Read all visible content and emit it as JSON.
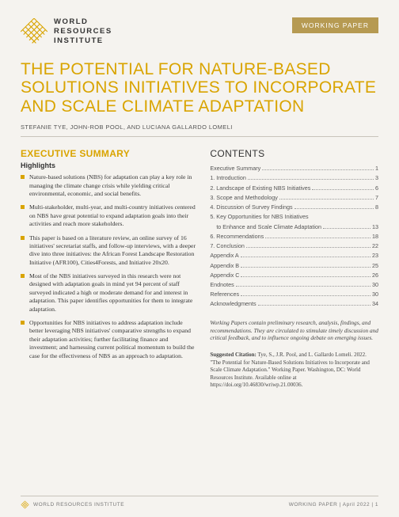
{
  "header": {
    "org_line1": "WORLD",
    "org_line2": "RESOURCES",
    "org_line3": "INSTITUTE",
    "badge": "WORKING PAPER"
  },
  "title": "THE POTENTIAL FOR NATURE-BASED SOLUTIONS INITIATIVES TO INCORPORATE AND SCALE CLIMATE ADAPTATION",
  "authors": "STEFANIE TYE, JOHN-ROB POOL, AND LUCIANA GALLARDO LOMELI",
  "exec_summary_heading": "EXECUTIVE SUMMARY",
  "highlights_label": "Highlights",
  "bullets": [
    "Nature-based solutions (NBS) for adaptation can play a key role in managing the climate change crisis while yielding critical environmental, economic, and social benefits.",
    "Multi-stakeholder, multi-year, and multi-country initiatives centered on NBS have great potential to expand adaptation goals into their activities and reach more stakeholders.",
    "This paper is based on a literature review, an online survey of 16 initiatives' secretariat staffs, and follow-up interviews, with a deeper dive into three initiatives: the African Forest Landscape Restoration Initiative (AFR100), Cities4Forests, and Initiative 20x20.",
    "Most of the NBS initiatives surveyed in this research were not designed with adaptation goals in mind yet 94 percent of staff surveyed indicated a high or moderate demand for and interest in adaptation. This paper identifies opportunities for them to integrate adaptation.",
    "Opportunities for NBS initiatives to address adaptation include better leveraging NBS initiatives' comparative strengths to expand their adaptation activities; further facilitating finance and investment; and harnessing current political momentum to build the case for the effectiveness of NBS as an approach to adaptation."
  ],
  "contents_heading": "CONTENTS",
  "toc": [
    {
      "label": "Executive Summary",
      "page": "1",
      "indent": false
    },
    {
      "label": "1. Introduction",
      "page": "3",
      "indent": false
    },
    {
      "label": "2. Landscape of Existing NBS Initiatives",
      "page": "6",
      "indent": false
    },
    {
      "label": "3. Scope and Methodology",
      "page": "7",
      "indent": false
    },
    {
      "label": "4. Discussion of Survey Findings",
      "page": "8",
      "indent": false
    },
    {
      "label": "5. Key Opportunities for NBS Initiatives",
      "page": "",
      "indent": false
    },
    {
      "label": "to Enhance and Scale Climate Adaptation",
      "page": "13",
      "indent": true
    },
    {
      "label": "6. Recommendations",
      "page": "18",
      "indent": false
    },
    {
      "label": "7. Conclusion",
      "page": "22",
      "indent": false
    },
    {
      "label": "Appendix A",
      "page": "23",
      "indent": false
    },
    {
      "label": "Appendix B",
      "page": "25",
      "indent": false
    },
    {
      "label": "Appendix C",
      "page": "26",
      "indent": false
    },
    {
      "label": "Endnotes",
      "page": "30",
      "indent": false
    },
    {
      "label": "References",
      "page": "30",
      "indent": false
    },
    {
      "label": "Acknowledgments",
      "page": "34",
      "indent": false
    }
  ],
  "working_note": "Working Papers contain preliminary research, analysis, findings, and recommendations. They are circulated to stimulate timely discussion and critical feedback, and to influence ongoing debate on emerging issues.",
  "citation_lead": "Suggested Citation:",
  "citation_body": " Tye, S., J.R. Pool, and L. Gallardo Lomeli. 2022. \"The Potential for Nature-Based Solutions Initiatives to Incorporate and Scale Climate Adaptation.\" Working Paper. Washington, DC: World Resources Institute. Available online at https://doi.org/10.46830/wriwp.21.00036.",
  "footer": {
    "left": "WORLD RESOURCES INSTITUTE",
    "right": "WORKING PAPER  |  April 2022  |  1"
  },
  "colors": {
    "gold": "#d9a400",
    "badge_bg": "#b69a52",
    "page_bg": "#f5f3ef",
    "text": "#3a3a3a",
    "rule": "#c8c4bb"
  }
}
